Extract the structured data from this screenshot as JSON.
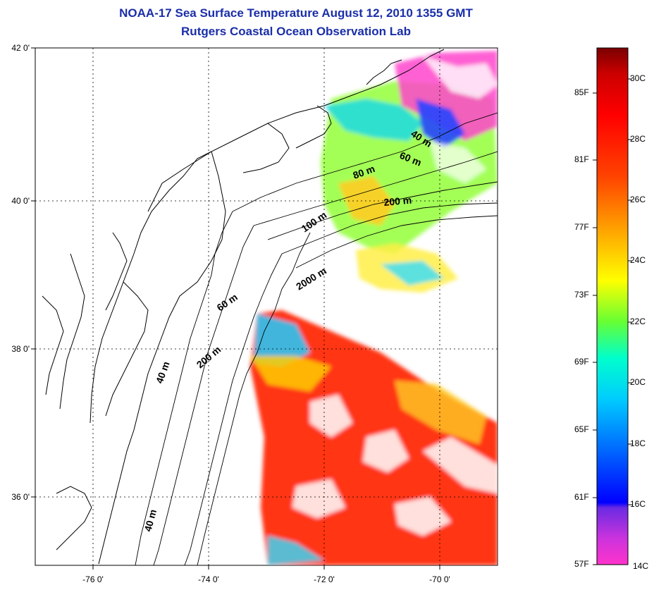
{
  "title_line1": "NOAA-17 Sea Surface Temperature August 12, 2010 1355 GMT",
  "title_line2": "Rutgers Coastal Ocean Observation Lab",
  "lon_ticks": [
    "-76 0'",
    "-74 0'",
    "-72 0'",
    "-70 0'"
  ],
  "lat_ticks": [
    "42 0'",
    "40 0'",
    "38 0'",
    "36 0'"
  ],
  "isobaths": [
    {
      "text": "40 m",
      "deg": 33
    },
    {
      "text": "60 m",
      "deg": 22
    },
    {
      "text": "80 m",
      "deg": 20
    },
    {
      "text": "200 m",
      "deg": -5
    },
    {
      "text": "100 m",
      "deg": -35
    },
    {
      "text": "2000 m",
      "deg": -32
    },
    {
      "text": "60 m",
      "deg": -35
    },
    {
      "text": "200 m",
      "deg": -40
    },
    {
      "text": "40 m",
      "deg": -70
    },
    {
      "text": "40 m",
      "deg": -75
    }
  ],
  "colorbar": {
    "fahrenheit": [
      "85F",
      "81F",
      "77F",
      "73F",
      "69F",
      "65F",
      "61F",
      "57F"
    ],
    "celsius": [
      "30C",
      "28C",
      "26C",
      "24C",
      "22C",
      "20C",
      "18C",
      "16C",
      "14C"
    ],
    "colors": [
      "#ff33cc",
      "#8a2be2",
      "#0000ff",
      "#00ccff",
      "#00ffcc",
      "#66ff33",
      "#ffff00",
      "#ffaa00",
      "#ff5500",
      "#ff0000",
      "#cc0000",
      "#7a0000"
    ]
  }
}
